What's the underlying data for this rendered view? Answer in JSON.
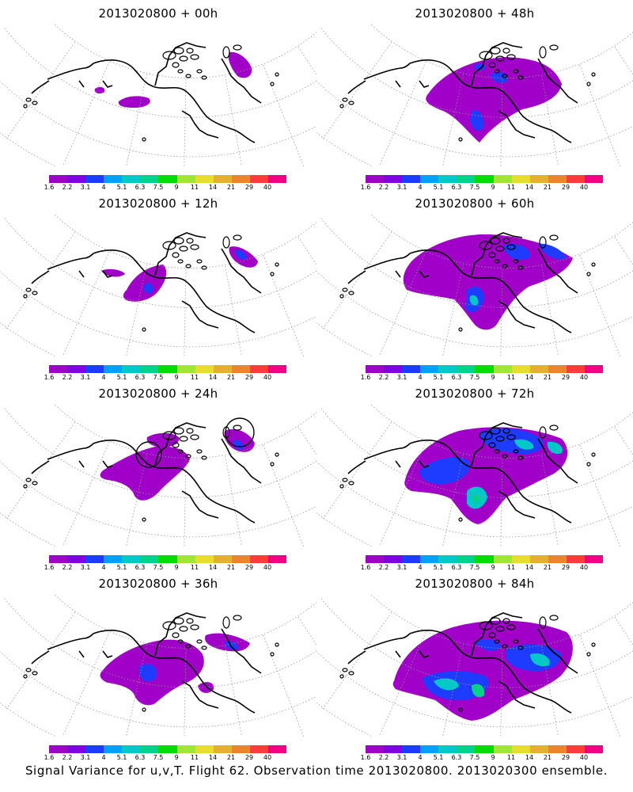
{
  "panels": [
    {
      "id": "p00",
      "title": "2013020800 + 00h",
      "lead_hours": 0
    },
    {
      "id": "p48",
      "title": "2013020800 + 48h",
      "lead_hours": 48
    },
    {
      "id": "p12",
      "title": "2013020800 + 12h",
      "lead_hours": 12
    },
    {
      "id": "p60",
      "title": "2013020800 + 60h",
      "lead_hours": 60
    },
    {
      "id": "p24",
      "title": "2013020800 + 24h",
      "lead_hours": 24
    },
    {
      "id": "p72",
      "title": "2013020800 + 72h",
      "lead_hours": 72
    },
    {
      "id": "p36",
      "title": "2013020800 + 36h",
      "lead_hours": 36
    },
    {
      "id": "p84",
      "title": "2013020800 + 84h",
      "lead_hours": 84
    }
  ],
  "colorbar": {
    "levels": [
      "1.6",
      "2.2",
      "3.1",
      "4",
      "5.1",
      "6.3",
      "7.5",
      "9",
      "11",
      "14",
      "21",
      "29",
      "40"
    ],
    "colors": [
      "#a000c8",
      "#8200dc",
      "#1e3cff",
      "#00a0ff",
      "#00c8c8",
      "#00d28c",
      "#00dc00",
      "#a0e632",
      "#e6dc32",
      "#e6af2d",
      "#f08228",
      "#fa3c3c",
      "#f00082"
    ]
  },
  "footer": "Signal Variance for u,v,T. Flight 62. Observation time 2013020800. 2013020300 ensemble.",
  "map_colors": {
    "coastline": "#000000",
    "graticule": "#999999",
    "low_variance": "#a000c8",
    "mid_variance": "#1e3cff",
    "high_variance": "#00c8c8",
    "peak_variance": "#00d28c"
  }
}
